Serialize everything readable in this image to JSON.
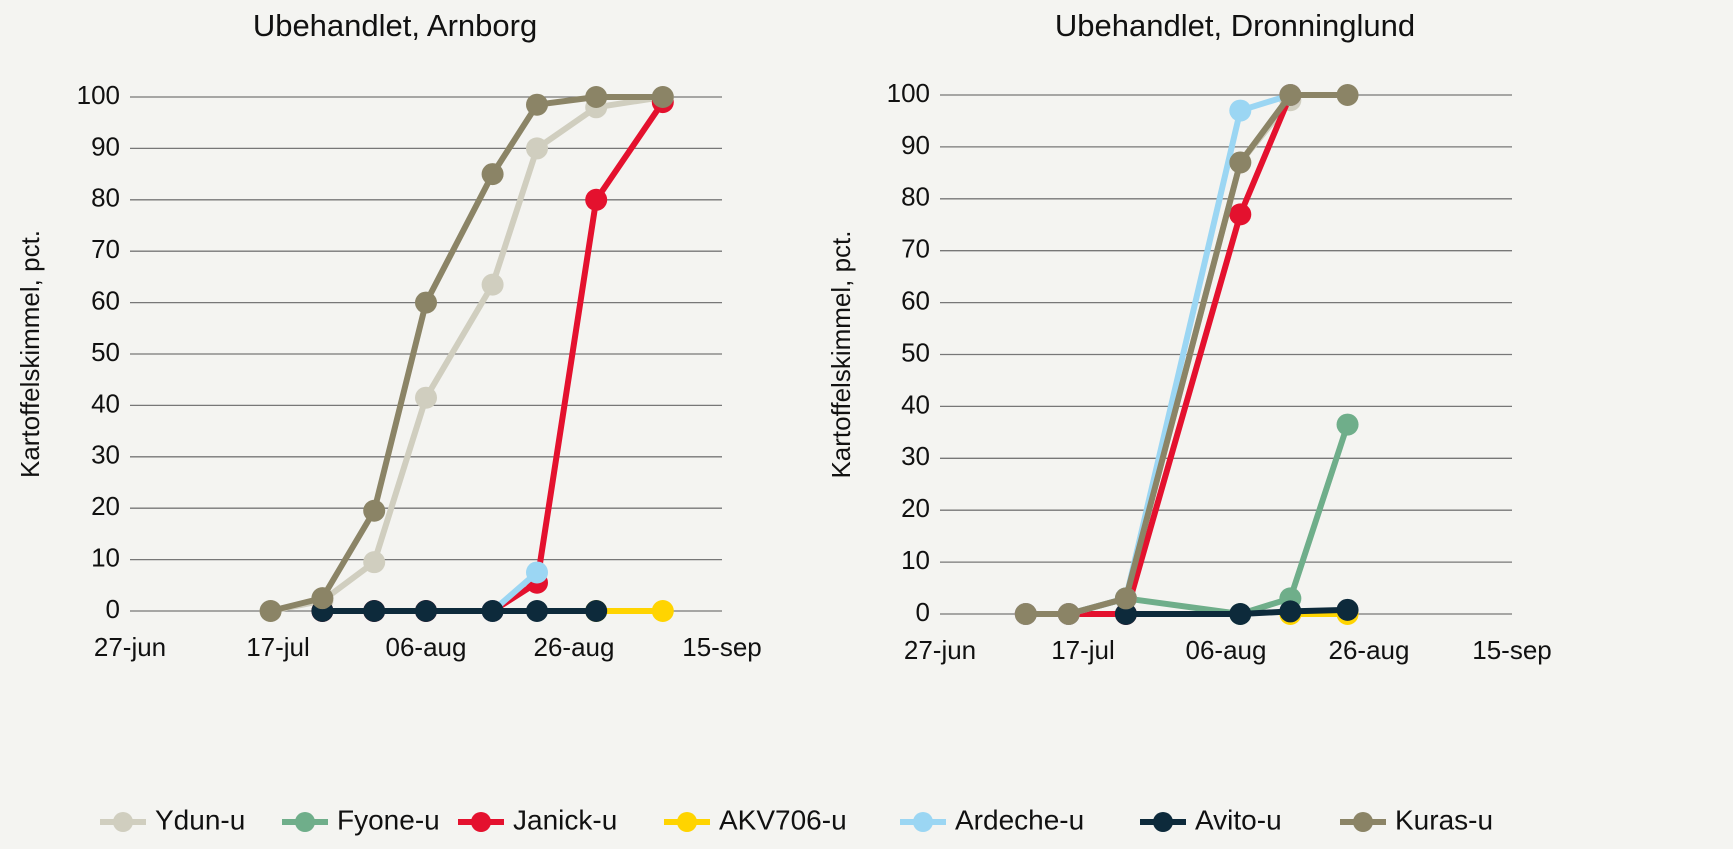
{
  "chart_data": [
    {
      "type": "line",
      "title": "Ubehandlet, Arnborg",
      "ylabel": "Kartoffelskimmel, pct.",
      "x": [
        "16-jul",
        "23-jul",
        "30-jul",
        "06-aug",
        "15-aug",
        "21-aug",
        "29-aug",
        "07-sep"
      ],
      "xlim": [
        "27-jun",
        "15-sep"
      ],
      "xticks": [
        "27-jun",
        "17-jul",
        "06-aug",
        "26-aug",
        "15-sep"
      ],
      "ylim": [
        0,
        100
      ],
      "yticks": [
        0,
        10,
        20,
        30,
        40,
        50,
        60,
        70,
        80,
        90,
        100
      ],
      "grid": true,
      "series": [
        {
          "name": "Ydun-u",
          "color": "#d0cebf",
          "values": [
            0,
            2,
            9.5,
            41.5,
            63.5,
            90,
            98,
            100
          ]
        },
        {
          "name": "Fyone-u",
          "color": "#6fae8a",
          "values": [
            null,
            null,
            null,
            null,
            null,
            null,
            null,
            null
          ]
        },
        {
          "name": "Janick-u",
          "color": "#e4112e",
          "values": [
            null,
            0,
            0,
            0,
            0,
            5.5,
            80,
            99
          ]
        },
        {
          "name": "AKV706-u",
          "color": "#ffd400",
          "values": [
            null,
            null,
            null,
            null,
            null,
            null,
            0,
            0
          ]
        },
        {
          "name": "Ardeche-u",
          "color": "#9bd6f3",
          "values": [
            null,
            null,
            null,
            null,
            0,
            7.5,
            null,
            null
          ]
        },
        {
          "name": "Avito-u",
          "color": "#0d2a3b",
          "values": [
            null,
            0,
            0,
            0,
            0,
            0,
            0,
            null
          ]
        },
        {
          "name": "Kuras-u",
          "color": "#8b8466",
          "values": [
            0,
            2.5,
            19.5,
            60,
            85,
            98.5,
            100,
            100
          ]
        }
      ]
    },
    {
      "type": "line",
      "title": "Ubehandlet, Dronninglund",
      "ylabel": "Kartoffelskimmel, pct.",
      "x": [
        "09-jul",
        "15-jul",
        "23-jul",
        "08-aug",
        "15-aug",
        "23-aug"
      ],
      "xlim": [
        "27-jun",
        "15-sep"
      ],
      "xticks": [
        "27-jun",
        "17-jul",
        "06-aug",
        "26-aug",
        "15-sep"
      ],
      "ylim": [
        0,
        100
      ],
      "yticks": [
        0,
        10,
        20,
        30,
        40,
        50,
        60,
        70,
        80,
        90,
        100
      ],
      "grid": true,
      "series": [
        {
          "name": "Ydun-u",
          "color": "#d0cebf",
          "values": [
            0,
            0,
            3,
            87,
            99,
            null
          ]
        },
        {
          "name": "Fyone-u",
          "color": "#6fae8a",
          "values": [
            0,
            0,
            3,
            0,
            3,
            36.5
          ]
        },
        {
          "name": "Janick-u",
          "color": "#e4112e",
          "values": [
            0,
            0,
            0,
            77,
            100,
            null
          ]
        },
        {
          "name": "AKV706-u",
          "color": "#ffd400",
          "values": [
            null,
            null,
            null,
            null,
            0,
            0
          ]
        },
        {
          "name": "Ardeche-u",
          "color": "#9bd6f3",
          "values": [
            0,
            0,
            3,
            97,
            100,
            null
          ]
        },
        {
          "name": "Avito-u",
          "color": "#0d2a3b",
          "values": [
            null,
            null,
            0,
            0,
            0.5,
            0.8
          ]
        },
        {
          "name": "Kuras-u",
          "color": "#8b8466",
          "values": [
            0,
            0,
            3,
            87,
            100,
            100
          ]
        }
      ]
    }
  ]
}
